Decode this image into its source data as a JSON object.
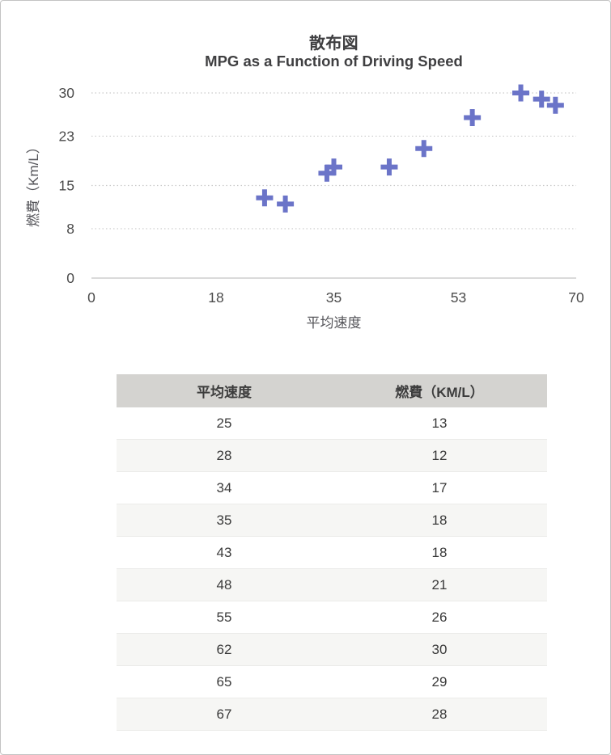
{
  "chart_data": {
    "type": "scatter",
    "title": "散布図",
    "subtitle": "MPG as a Function of Driving Speed",
    "xlabel": "平均速度",
    "ylabel": "燃費（Km/L）",
    "xlim": [
      0,
      70
    ],
    "ylim": [
      0,
      30
    ],
    "xticks": [
      0,
      18,
      35,
      53,
      70
    ],
    "yticks": [
      0,
      8,
      15,
      23,
      30
    ],
    "grid": "horizontal-dotted",
    "legend": "none",
    "marker": "plus",
    "marker_color": "#6b74c8",
    "gridline_color": "#c9c9c9",
    "axisline_color": "#c3c3c3",
    "tick_label_color": "#4b4b4b",
    "series": [
      {
        "points": [
          [
            25,
            13
          ],
          [
            28,
            12
          ],
          [
            34,
            17
          ],
          [
            35,
            18
          ],
          [
            43,
            18
          ],
          [
            48,
            21
          ],
          [
            55,
            26
          ],
          [
            62,
            30
          ],
          [
            65,
            29
          ],
          [
            67,
            28
          ]
        ]
      }
    ]
  },
  "table": {
    "headers": [
      "平均速度",
      "燃費（KM/L）"
    ],
    "rows": [
      [
        25,
        13
      ],
      [
        28,
        12
      ],
      [
        34,
        17
      ],
      [
        35,
        18
      ],
      [
        43,
        18
      ],
      [
        48,
        21
      ],
      [
        55,
        26
      ],
      [
        62,
        30
      ],
      [
        65,
        29
      ],
      [
        67,
        28
      ]
    ],
    "header_bg": "#d4d3d0",
    "alt_row_bg": "#f6f6f4"
  }
}
